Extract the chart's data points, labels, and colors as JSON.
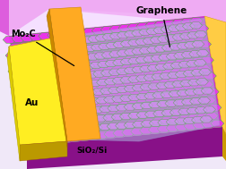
{
  "bg_color": "#f0e8f8",
  "substrate_face_color": "#cc33cc",
  "substrate_bottom_color": "#aa22aa",
  "substrate_right_color": "#dd55dd",
  "graphene_fill": "#b8b8e8",
  "graphene_alpha": 0.52,
  "honeycomb_fill_purple": "#ee44ee",
  "honeycomb_edge_green": "#55bb44",
  "honeycomb_fill_graphene": "#9999cc",
  "honeycomb_edge_graphene": "#44aa44",
  "mo2c_top_color": "#ffaa22",
  "mo2c_side_color": "#cc8800",
  "au_top_color": "#ffee22",
  "au_side_color": "#ddbb00",
  "au_front_color": "#bb9900",
  "right_gold_color": "#ffcc44",
  "top_pink_color": "#ffaadd",
  "top_light_color": "#f8d8f8",
  "label_graphene": "Graphene",
  "label_mo2c": "Mo₂C",
  "label_au": "Au",
  "label_sio2": "SiO₂/Si"
}
